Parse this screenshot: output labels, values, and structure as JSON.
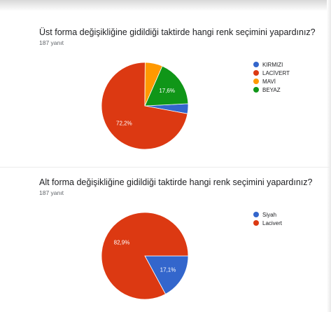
{
  "chart_data": [
    {
      "type": "pie",
      "title": "Üst forma değişikliğine gidildiği taktirde hangi renk seçimini yapardınız?",
      "subtitle": "187 yanıt",
      "categories": [
        "KIRMIZI",
        "LACİVERT",
        "MAVİ",
        "BEYAZ"
      ],
      "values": [
        3.7,
        72.2,
        6.5,
        17.6
      ],
      "value_labels": [
        "",
        "72,2%",
        "",
        "17,6%"
      ],
      "colors": [
        "#3366cc",
        "#dc3912",
        "#ff9900",
        "#109618"
      ],
      "legend_position": "right"
    },
    {
      "type": "pie",
      "title": "Alt forma değişikliğine gidildiği taktirde hangi renk seçimini yapardınız?",
      "subtitle": "187 yanıt",
      "categories": [
        "Siyah",
        "Lacivert"
      ],
      "values": [
        17.1,
        82.9
      ],
      "value_labels": [
        "17,1%",
        "82,9%"
      ],
      "colors": [
        "#3366cc",
        "#dc3912"
      ],
      "legend_position": "right"
    }
  ]
}
